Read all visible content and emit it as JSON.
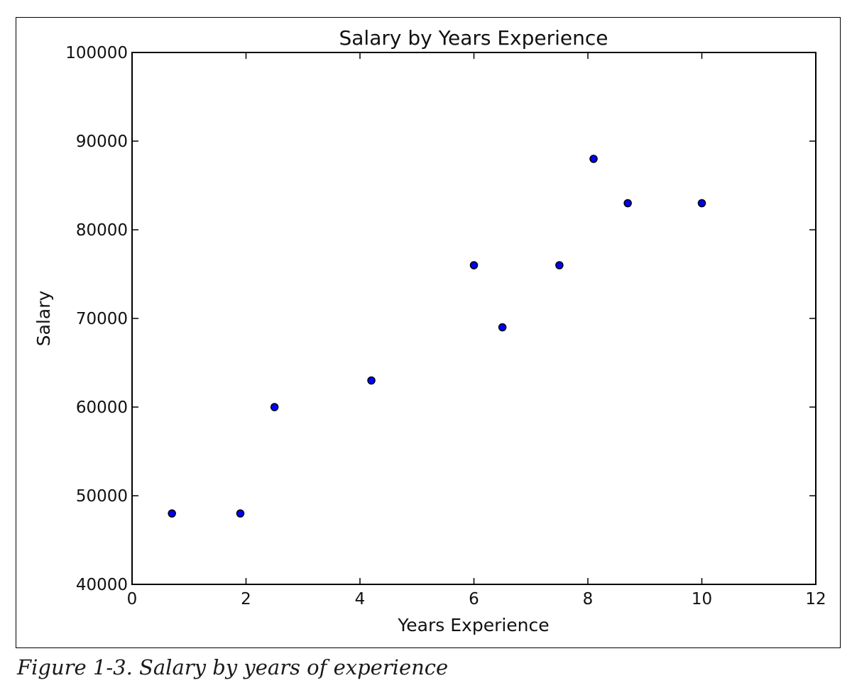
{
  "caption": "Figure 1-3. Salary by years of experience",
  "chart_data": {
    "type": "scatter",
    "title": "Salary by Years Experience",
    "xlabel": "Years Experience",
    "ylabel": "Salary",
    "xlim": [
      0,
      12
    ],
    "ylim": [
      40000,
      100000
    ],
    "xticks": [
      "0",
      "2",
      "4",
      "6",
      "8",
      "10",
      "12"
    ],
    "yticks": [
      "40000",
      "50000",
      "60000",
      "70000",
      "80000",
      "90000",
      "100000"
    ],
    "grid": false,
    "marker_color": "#0000ff",
    "points": [
      {
        "x": 0.7,
        "y": 48000
      },
      {
        "x": 1.9,
        "y": 48000
      },
      {
        "x": 2.5,
        "y": 60000
      },
      {
        "x": 4.2,
        "y": 63000
      },
      {
        "x": 6.0,
        "y": 76000
      },
      {
        "x": 6.5,
        "y": 69000
      },
      {
        "x": 7.5,
        "y": 76000
      },
      {
        "x": 8.1,
        "y": 88000
      },
      {
        "x": 8.7,
        "y": 83000
      },
      {
        "x": 10.0,
        "y": 83000
      }
    ]
  }
}
